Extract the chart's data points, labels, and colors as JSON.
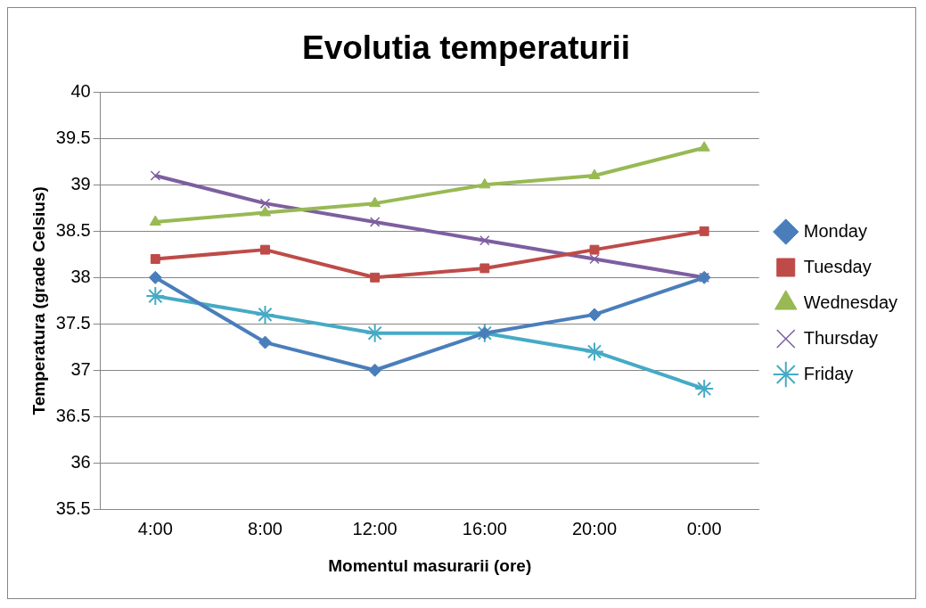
{
  "chart_data": {
    "type": "line",
    "title": "Evolutia temperaturii",
    "xlabel": "Momentul masurarii (ore)",
    "ylabel": "Temperatura (grade Celsius)",
    "categories": [
      "4:00",
      "8:00",
      "12:00",
      "16:00",
      "20:00",
      "0:00"
    ],
    "ylim": [
      35.5,
      40
    ],
    "yticks": [
      35.5,
      36,
      36.5,
      37,
      37.5,
      38,
      38.5,
      39,
      39.5,
      40
    ],
    "grid": "y",
    "legend": "right",
    "series": [
      {
        "name": "Monday",
        "color": "#4a7ebb",
        "marker": "diamond",
        "values": [
          38,
          37.3,
          37,
          37.4,
          37.6,
          38
        ]
      },
      {
        "name": "Tuesday",
        "color": "#be4b48",
        "marker": "square",
        "values": [
          38.2,
          38.3,
          38,
          38.1,
          38.3,
          38.5
        ]
      },
      {
        "name": "Wednesday",
        "color": "#98b954",
        "marker": "triangle",
        "values": [
          38.6,
          38.7,
          38.8,
          39,
          39.1,
          39.4
        ]
      },
      {
        "name": "Thursday",
        "color": "#7d5fa0",
        "marker": "cross",
        "values": [
          39.1,
          38.8,
          38.6,
          38.4,
          38.2,
          38
        ]
      },
      {
        "name": "Friday",
        "color": "#46aac5",
        "marker": "cross",
        "values": [
          37.8,
          37.6,
          37.4,
          37.4,
          37.2,
          36.8
        ]
      }
    ]
  }
}
